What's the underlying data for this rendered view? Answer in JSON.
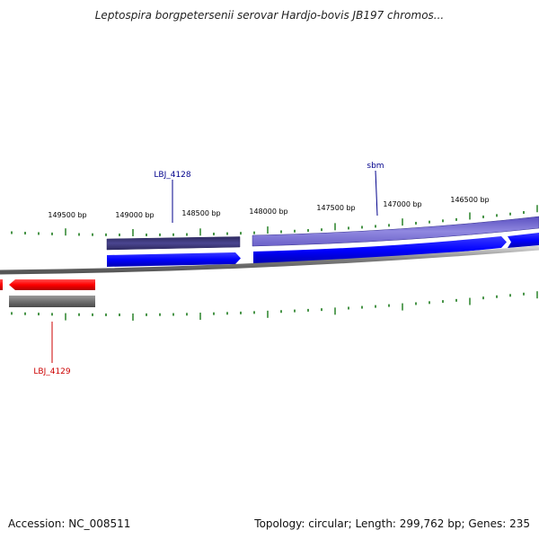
{
  "title": "Leptospira borgpetersenii serovar Hardjo-bovis JB197 chromos...",
  "footer": {
    "accession": "Accession: NC_008511",
    "stats": "Topology: circular; Length: 299,762 bp; Genes: 235"
  },
  "ticks": [
    "149500 bp",
    "149000 bp",
    "148500 bp",
    "148000 bp",
    "147500 bp",
    "147000 bp",
    "146500 bp"
  ],
  "gene_labels": [
    {
      "id": "lbj4128",
      "text": "LBJ_4128",
      "color": "#00008b"
    },
    {
      "id": "sbm",
      "text": "sbm",
      "color": "#00008b"
    },
    {
      "id": "lbj4129",
      "text": "LBJ_4129",
      "color": "#cc0000"
    }
  ],
  "colors": {
    "backbone": "#808080",
    "forward_cds": "#0000ff",
    "reverse_cds": "#ff0000",
    "forward_gene_dark": "#3e3a7a",
    "forward_gene_light": "#8278d8",
    "reverse_gene": "#6e6e6e",
    "tick": "#1a7a1a"
  }
}
